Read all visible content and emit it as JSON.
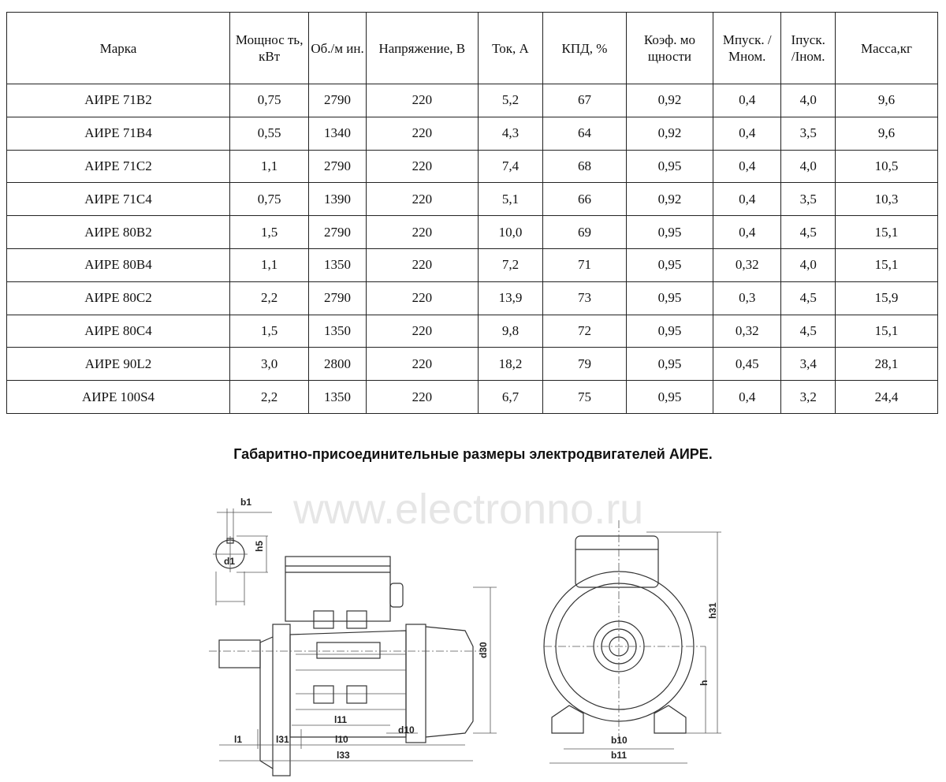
{
  "table": {
    "headers": [
      "Марка",
      "Мощнос ть, кВт",
      "Об./м ин.",
      "Напряжение, В",
      "Ток, А",
      "КПД, %",
      "Коэф. мо щности",
      "Мпуск. /Мном.",
      "Iпуск. /Iном.",
      "Масса,кг"
    ],
    "rows": [
      [
        "АИРЕ 71В2",
        "0,75",
        "2790",
        "220",
        "5,2",
        "67",
        "0,92",
        "0,4",
        "4,0",
        "9,6"
      ],
      [
        "АИРЕ 71В4",
        "0,55",
        "1340",
        "220",
        "4,3",
        "64",
        "0,92",
        "0,4",
        "3,5",
        "9,6"
      ],
      [
        "АИРЕ 71С2",
        "1,1",
        "2790",
        "220",
        "7,4",
        "68",
        "0,95",
        "0,4",
        "4,0",
        "10,5"
      ],
      [
        "АИРЕ 71С4",
        "0,75",
        "1390",
        "220",
        "5,1",
        "66",
        "0,92",
        "0,4",
        "3,5",
        "10,3"
      ],
      [
        "АИРЕ 80В2",
        "1,5",
        "2790",
        "220",
        "10,0",
        "69",
        "0,95",
        "0,4",
        "4,5",
        "15,1"
      ],
      [
        "АИРЕ 80В4",
        "1,1",
        "1350",
        "220",
        "7,2",
        "71",
        "0,95",
        "0,32",
        "4,0",
        "15,1"
      ],
      [
        "АИРЕ 80С2",
        "2,2",
        "2790",
        "220",
        "13,9",
        "73",
        "0,95",
        "0,3",
        "4,5",
        "15,9"
      ],
      [
        "АИРЕ 80С4",
        "1,5",
        "1350",
        "220",
        "9,8",
        "72",
        "0,95",
        "0,32",
        "4,5",
        "15,1"
      ],
      [
        "АИРЕ 90L2",
        "3,0",
        "2800",
        "220",
        "18,2",
        "79",
        "0,95",
        "0,45",
        "3,4",
        "28,1"
      ],
      [
        "АИРЕ 100S4",
        "2,2",
        "1350",
        "220",
        "6,7",
        "75",
        "0,95",
        "0,4",
        "3,2",
        "24,4"
      ]
    ]
  },
  "section_title": "Габаритно-присоединительные размеры электродвигателей АИРЕ.",
  "drawing": {
    "labels": {
      "b1": "b1",
      "h5": "h5",
      "d1": "d1",
      "d30": "d30",
      "l11": "l11",
      "d10": "d10",
      "l1": "l1",
      "l31": "l31",
      "l10": "l10",
      "l33": "l33",
      "b10": "b10",
      "b11": "b11",
      "h": "h",
      "h31": "h31"
    },
    "watermark": "www.electronno.ru"
  }
}
